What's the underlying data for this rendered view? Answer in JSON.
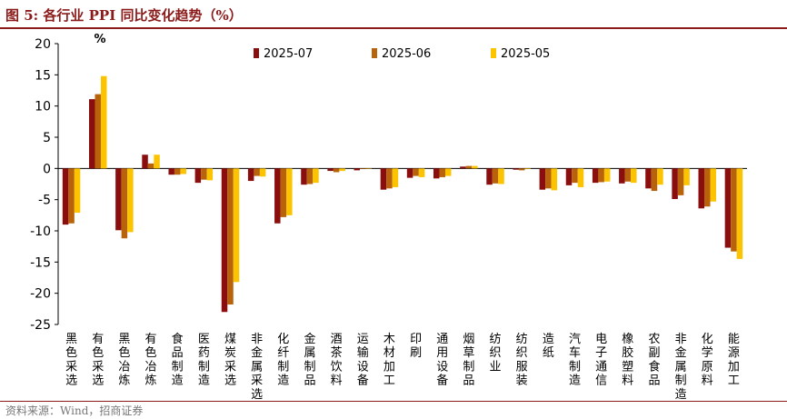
{
  "figure": {
    "title": "图 5:  各行业 PPI 同比变化趋势（%）",
    "source": "资料来源：Wind，招商证券"
  },
  "chart_data": {
    "type": "bar",
    "unit_label": "%",
    "ylim": [
      -25,
      20
    ],
    "yticks": [
      -25,
      -20,
      -15,
      -10,
      -5,
      0,
      5,
      10,
      15,
      20
    ],
    "legend_position": "top-center",
    "categories": [
      "黑色采选",
      "有色采选",
      "黑色冶炼",
      "有色冶炼",
      "食品制造",
      "医药制造",
      "煤炭采选",
      "非金属采选",
      "化纤制造",
      "金属制品",
      "酒茶饮料",
      "运输设备",
      "木材加工",
      "印刷",
      "通用设备",
      "烟草制品",
      "纺织业",
      "纺织服装",
      "造纸",
      "汽车制造",
      "电子通信",
      "橡胶塑料",
      "农副食品",
      "非金属制造",
      "化学原料",
      "能源加工"
    ],
    "series": [
      {
        "name": "2025-07",
        "color": "#8b0e0e",
        "values": [
          -9.0,
          11.1,
          -9.9,
          2.2,
          -1.0,
          -2.3,
          -23.0,
          -2.0,
          -8.8,
          -2.6,
          -0.4,
          -0.3,
          -3.4,
          -1.5,
          -1.6,
          0.3,
          -2.6,
          -0.2,
          -3.4,
          -2.7,
          -2.3,
          -2.4,
          -3.2,
          -4.9,
          -6.4,
          -12.7
        ]
      },
      {
        "name": "2025-06",
        "color": "#b8620c",
        "values": [
          -8.8,
          11.9,
          -11.2,
          0.8,
          -1.0,
          -1.8,
          -21.8,
          -1.2,
          -7.8,
          -2.5,
          -0.6,
          -0.1,
          -3.2,
          -1.2,
          -1.4,
          0.4,
          -2.4,
          -0.3,
          -3.2,
          -2.3,
          -2.2,
          -2.1,
          -3.6,
          -4.3,
          -6.1,
          -13.3
        ]
      },
      {
        "name": "2025-05",
        "color": "#fcc300",
        "values": [
          -7.1,
          14.8,
          -10.2,
          2.2,
          -0.9,
          -1.9,
          -18.2,
          -1.3,
          -7.5,
          -2.3,
          -0.4,
          0.0,
          -3.0,
          -1.4,
          -1.2,
          0.4,
          -2.5,
          -0.1,
          -3.5,
          -3.0,
          -2.1,
          -2.3,
          -2.6,
          -2.7,
          -5.3,
          -14.5
        ]
      }
    ]
  }
}
